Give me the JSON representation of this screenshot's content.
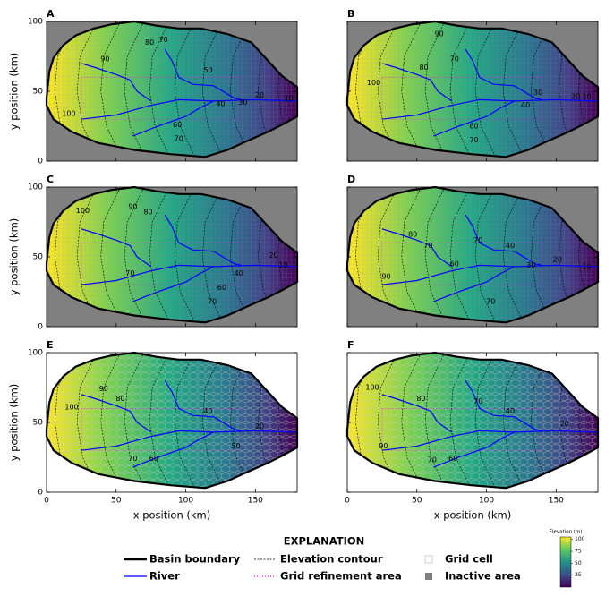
{
  "chart_data": [
    {
      "type": "map",
      "title": "A",
      "ylabel": "y position (km)",
      "background": "#808080",
      "xlim": [
        0,
        180
      ],
      "ylim": [
        0,
        100
      ],
      "xticks": [
        0,
        50,
        100,
        150
      ],
      "yticks": [
        0,
        50,
        100
      ],
      "contour_labels": [
        {
          "x": 42,
          "y": 73,
          "value": 90
        },
        {
          "x": 74,
          "y": 85,
          "value": 80
        },
        {
          "x": 84,
          "y": 87,
          "value": 70
        },
        {
          "x": 116,
          "y": 65,
          "value": 50
        },
        {
          "x": 16,
          "y": 34,
          "value": 100
        },
        {
          "x": 94,
          "y": 26,
          "value": 60
        },
        {
          "x": 95,
          "y": 16,
          "value": 70
        },
        {
          "x": 125,
          "y": 41,
          "value": 40
        },
        {
          "x": 141,
          "y": 42,
          "value": 30
        },
        {
          "x": 153,
          "y": 47,
          "value": 20
        },
        {
          "x": 174,
          "y": 45,
          "value": 10
        }
      ]
    },
    {
      "type": "map",
      "title": "B",
      "background": "#808080",
      "xlim": [
        0,
        180
      ],
      "ylim": [
        0,
        100
      ],
      "xticks": [
        0,
        50,
        100,
        150
      ],
      "yticks": [
        0,
        50,
        100
      ],
      "contour_labels": [
        {
          "x": 66,
          "y": 91,
          "value": 90
        },
        {
          "x": 55,
          "y": 67,
          "value": 80
        },
        {
          "x": 77,
          "y": 73,
          "value": 70
        },
        {
          "x": 19,
          "y": 56,
          "value": 100
        },
        {
          "x": 91,
          "y": 25,
          "value": 60
        },
        {
          "x": 91,
          "y": 15,
          "value": 70
        },
        {
          "x": 128,
          "y": 40,
          "value": 40
        },
        {
          "x": 137,
          "y": 49,
          "value": 30
        },
        {
          "x": 164,
          "y": 46,
          "value": 20
        },
        {
          "x": 172,
          "y": 46,
          "value": 10
        }
      ]
    },
    {
      "type": "map",
      "title": "C",
      "ylabel": "y position (km)",
      "background": "#808080",
      "xlim": [
        0,
        180
      ],
      "ylim": [
        0,
        100
      ],
      "xticks": [
        0,
        50,
        100,
        150
      ],
      "yticks": [
        0,
        50,
        100
      ],
      "contour_labels": [
        {
          "x": 26,
          "y": 83,
          "value": 100
        },
        {
          "x": 62,
          "y": 86,
          "value": 90
        },
        {
          "x": 73,
          "y": 82,
          "value": 80
        },
        {
          "x": 60,
          "y": 38,
          "value": 70
        },
        {
          "x": 126,
          "y": 28,
          "value": 60
        },
        {
          "x": 119,
          "y": 18,
          "value": 70
        },
        {
          "x": 138,
          "y": 38,
          "value": 40
        },
        {
          "x": 163,
          "y": 51,
          "value": 20
        },
        {
          "x": 170,
          "y": 44,
          "value": 10
        }
      ]
    },
    {
      "type": "map",
      "title": "D",
      "background": "#808080",
      "xlim": [
        0,
        180
      ],
      "ylim": [
        0,
        100
      ],
      "xticks": [
        0,
        50,
        100,
        150
      ],
      "yticks": [
        0,
        50,
        100
      ],
      "contour_labels": [
        {
          "x": 47,
          "y": 66,
          "value": 80
        },
        {
          "x": 58,
          "y": 58,
          "value": 70
        },
        {
          "x": 94,
          "y": 62,
          "value": 70
        },
        {
          "x": 117,
          "y": 58,
          "value": 40
        },
        {
          "x": 132,
          "y": 44,
          "value": 30
        },
        {
          "x": 151,
          "y": 48,
          "value": 20
        },
        {
          "x": 172,
          "y": 43,
          "value": 10
        },
        {
          "x": 28,
          "y": 36,
          "value": 90
        },
        {
          "x": 77,
          "y": 45,
          "value": 60
        },
        {
          "x": 103,
          "y": 18,
          "value": 70
        }
      ]
    },
    {
      "type": "map",
      "title": "E",
      "xlabel": "x position (km)",
      "ylabel": "y position (km)",
      "background": "#ffffff",
      "xlim": [
        0,
        180
      ],
      "ylim": [
        0,
        100
      ],
      "xticks": [
        0,
        50,
        100,
        150
      ],
      "yticks": [
        0,
        50,
        100
      ],
      "contour_labels": [
        {
          "x": 18,
          "y": 61,
          "value": 100
        },
        {
          "x": 41,
          "y": 74,
          "value": 90
        },
        {
          "x": 53,
          "y": 67,
          "value": 80
        },
        {
          "x": 116,
          "y": 58,
          "value": 40
        },
        {
          "x": 153,
          "y": 47,
          "value": 20
        },
        {
          "x": 136,
          "y": 33,
          "value": 50
        },
        {
          "x": 62,
          "y": 24,
          "value": 70
        },
        {
          "x": 77,
          "y": 24,
          "value": 60
        }
      ]
    },
    {
      "type": "map",
      "title": "F",
      "xlabel": "x position (km)",
      "background": "#ffffff",
      "xlim": [
        0,
        180
      ],
      "ylim": [
        0,
        100
      ],
      "xticks": [
        0,
        50,
        100,
        150
      ],
      "yticks": [
        0,
        50,
        100
      ],
      "contour_labels": [
        {
          "x": 18,
          "y": 75,
          "value": 100
        },
        {
          "x": 53,
          "y": 67,
          "value": 80
        },
        {
          "x": 94,
          "y": 65,
          "value": 70
        },
        {
          "x": 117,
          "y": 58,
          "value": 40
        },
        {
          "x": 156,
          "y": 49,
          "value": 20
        },
        {
          "x": 26,
          "y": 33,
          "value": 90
        },
        {
          "x": 61,
          "y": 23,
          "value": 70
        },
        {
          "x": 76,
          "y": 24,
          "value": 60
        }
      ]
    }
  ],
  "legend": {
    "title": "EXPLANATION",
    "items": [
      {
        "label": "Basin boundary",
        "color": "#000000"
      },
      {
        "label": "River",
        "color": "#0000ff"
      },
      {
        "label": "Elevation contour",
        "color": "#000000"
      },
      {
        "label": "Grid refinement area",
        "color": "#ff00ff"
      },
      {
        "label": "Grid cell",
        "color": "#cccccc"
      },
      {
        "label": "Inactive area",
        "color": "#808080"
      }
    ]
  },
  "colorbar": {
    "title": "Elevation (m)",
    "lim": [
      0,
      105
    ],
    "ticks": [
      25,
      50,
      75,
      100
    ]
  }
}
